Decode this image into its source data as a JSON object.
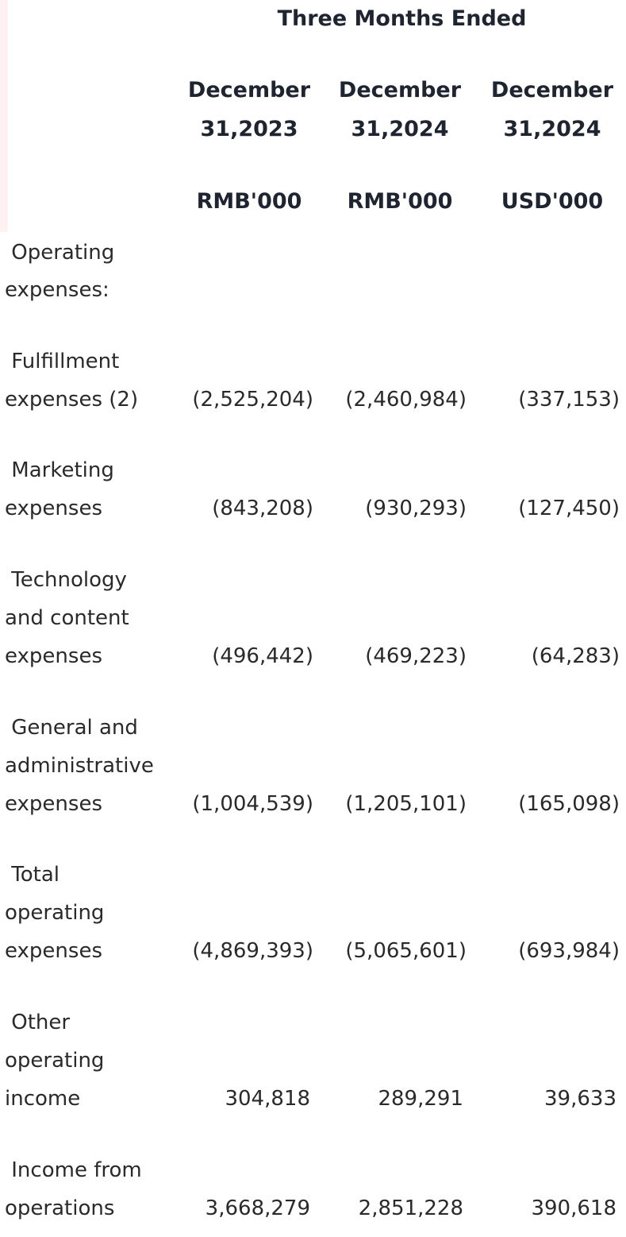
{
  "header": {
    "title": "Three Months Ended",
    "columns": [
      {
        "line1": "December",
        "line2": "31,2023",
        "unit": "RMB'000"
      },
      {
        "line1": "December",
        "line2": "31,2024",
        "unit": "RMB'000"
      },
      {
        "line1": "December",
        "line2": "31,2024",
        "unit": "USD'000"
      }
    ]
  },
  "rows": [
    {
      "label_lines": [
        " Operating",
        "expenses:"
      ],
      "values": [
        "",
        "",
        ""
      ]
    },
    {
      "label_lines": [
        " Fulfillment",
        "expenses (2)"
      ],
      "values": [
        "(2,525,204)",
        "(2,460,984)",
        "(337,153)"
      ]
    },
    {
      "label_lines": [
        " Marketing",
        "expenses"
      ],
      "values": [
        "(843,208)",
        "(930,293)",
        "(127,450)"
      ]
    },
    {
      "label_lines": [
        " Technology",
        "and content",
        "expenses"
      ],
      "values": [
        "(496,442)",
        "(469,223)",
        "(64,283)"
      ]
    },
    {
      "label_lines": [
        " General and",
        "administrative",
        "expenses"
      ],
      "values": [
        "(1,004,539)",
        "(1,205,101)",
        "(165,098)"
      ]
    },
    {
      "label_lines": [
        " Total",
        "operating",
        "expenses"
      ],
      "values": [
        "(4,869,393)",
        "(5,065,601)",
        "(693,984)"
      ]
    },
    {
      "label_lines": [
        " Other",
        "operating",
        "income"
      ],
      "values": [
        "304,818",
        "289,291",
        "39,633"
      ]
    },
    {
      "label_lines": [
        " Income from",
        "operations"
      ],
      "values": [
        "3,668,279",
        "2,851,228",
        "390,618"
      ]
    }
  ]
}
